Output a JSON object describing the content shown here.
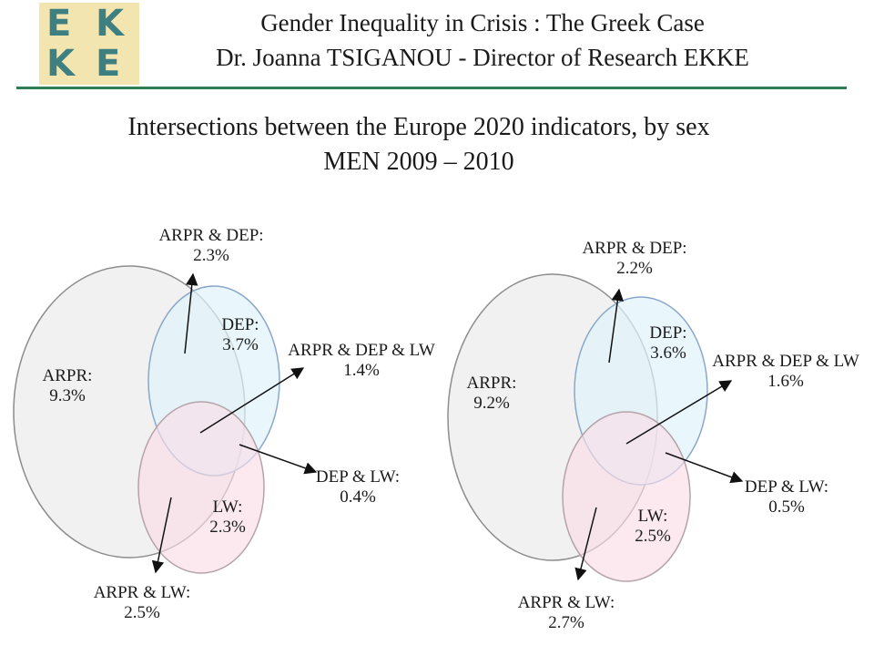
{
  "header": {
    "logo_letters": [
      "E",
      "K",
      "K",
      "E"
    ],
    "line1": "Gender Inequality in Crisis : The Greek Case",
    "line2": "Dr. Joanna TSIGANOU - Director of Research EKKE"
  },
  "slide": {
    "title_line1": "Intersections between the Europe 2020 indicators, by sex",
    "title_line2": "MEN 2009 – 2010"
  },
  "colors": {
    "accent_rule": "#2f7c55",
    "logo_bg": "#f3e5b0",
    "logo_text": "#3e7f82",
    "arpr_fill": "#f0efef",
    "dep_fill": "#dff3fb",
    "lw_fill": "#f9dde6"
  },
  "diagrams": [
    {
      "arpr": {
        "name": "ARPR:",
        "value": "9.3%"
      },
      "dep": {
        "name": "DEP:",
        "value": "3.7%"
      },
      "lw": {
        "name": "LW:",
        "value": "2.3%"
      },
      "arpr_dep": {
        "name": "ARPR & DEP:",
        "value": "2.3%"
      },
      "arpr_dep_lw": {
        "name": "ARPR & DEP & LW",
        "value": "1.4%"
      },
      "dep_lw": {
        "name": "DEP & LW:",
        "value": "0.4%"
      },
      "arpr_lw": {
        "name": "ARPR & LW:",
        "value": "2.5%"
      }
    },
    {
      "arpr": {
        "name": "ARPR:",
        "value": "9.2%"
      },
      "dep": {
        "name": "DEP:",
        "value": "3.6%"
      },
      "lw": {
        "name": "LW:",
        "value": "2.5%"
      },
      "arpr_dep": {
        "name": "ARPR & DEP:",
        "value": "2.2%"
      },
      "arpr_dep_lw": {
        "name": "ARPR & DEP & LW",
        "value": "1.6%"
      },
      "dep_lw": {
        "name": "DEP & LW:",
        "value": "0.5%"
      },
      "arpr_lw": {
        "name": "ARPR & LW:",
        "value": "2.7%"
      }
    }
  ]
}
